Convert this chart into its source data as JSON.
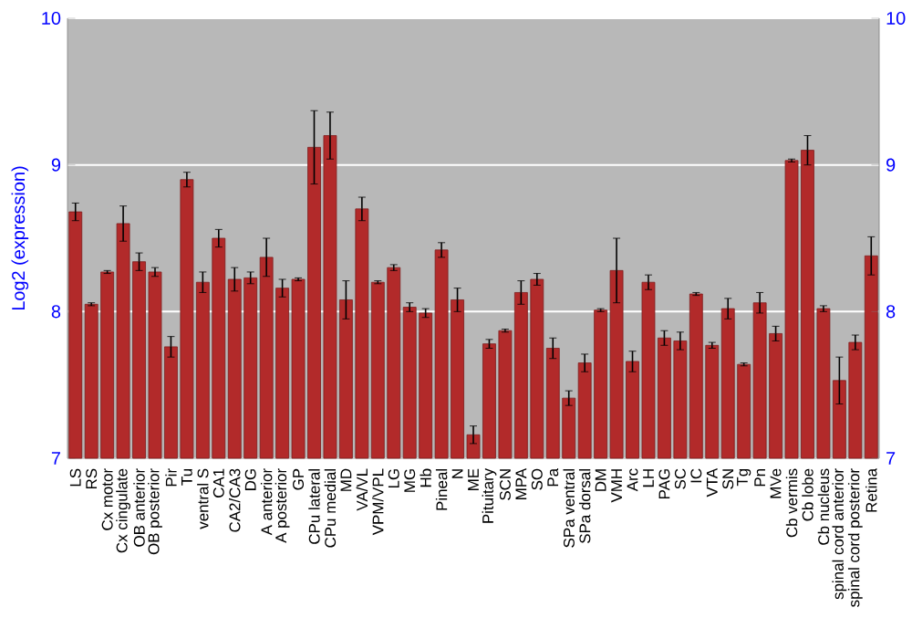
{
  "chart_data": {
    "type": "bar",
    "ylabel": "Log2 (expression)",
    "categories": [
      "LS",
      "RS",
      "Cx motor",
      "Cx cingulate",
      "OB anterior",
      "OB posterior",
      "Pir",
      "Tu",
      "ventral S",
      "CA1",
      "CA2/CA3",
      "DG",
      "A anterior",
      "A posterior",
      "GP",
      "CPu lateral",
      "CPu medial",
      "MD",
      "VA/VL",
      "VPM/VPL",
      "LG",
      "MG",
      "Hb",
      "Pineal",
      "N",
      "ME",
      "Pituitary",
      "SCN",
      "MPA",
      "SO",
      "Pa",
      "SPa ventral",
      "SPa dorsal",
      "DM",
      "VMH",
      "Arc",
      "LH",
      "PAG",
      "SC",
      "IC",
      "VTA",
      "SN",
      "Tg",
      "Pn",
      "MVe",
      "Cb vermis",
      "Cb lobe",
      "Cb nucleus",
      "spinal cord anterior",
      "spinal cord posterior",
      "Retina"
    ],
    "values": [
      8.68,
      8.05,
      8.27,
      8.6,
      8.34,
      8.27,
      7.76,
      8.9,
      8.2,
      8.5,
      8.22,
      8.23,
      8.37,
      8.16,
      8.22,
      9.12,
      9.2,
      8.08,
      8.7,
      8.2,
      8.3,
      8.03,
      7.99,
      8.42,
      8.08,
      7.16,
      7.78,
      7.87,
      8.13,
      8.22,
      7.75,
      7.41,
      7.65,
      8.01,
      8.28,
      7.66,
      8.2,
      7.82,
      7.8,
      8.12,
      7.77,
      8.02,
      7.64,
      8.06,
      7.85,
      9.03,
      9.1,
      8.02,
      7.53,
      7.79,
      8.38
    ],
    "errors": [
      0.06,
      0.01,
      0.01,
      0.12,
      0.06,
      0.03,
      0.07,
      0.05,
      0.07,
      0.06,
      0.08,
      0.04,
      0.13,
      0.06,
      0.01,
      0.25,
      0.16,
      0.13,
      0.08,
      0.01,
      0.02,
      0.03,
      0.03,
      0.05,
      0.08,
      0.06,
      0.03,
      0.01,
      0.08,
      0.04,
      0.07,
      0.05,
      0.06,
      0.01,
      0.22,
      0.07,
      0.05,
      0.05,
      0.06,
      0.01,
      0.02,
      0.07,
      0.01,
      0.07,
      0.05,
      0.01,
      0.1,
      0.02,
      0.16,
      0.05,
      0.13
    ],
    "color": "#b22a2a",
    "ylim": [
      7,
      10
    ],
    "yticks": [
      7,
      8,
      9,
      10
    ],
    "y2lim": [
      7,
      10
    ],
    "y2ticks": [
      7,
      8,
      9,
      10
    ],
    "grid": "y"
  }
}
